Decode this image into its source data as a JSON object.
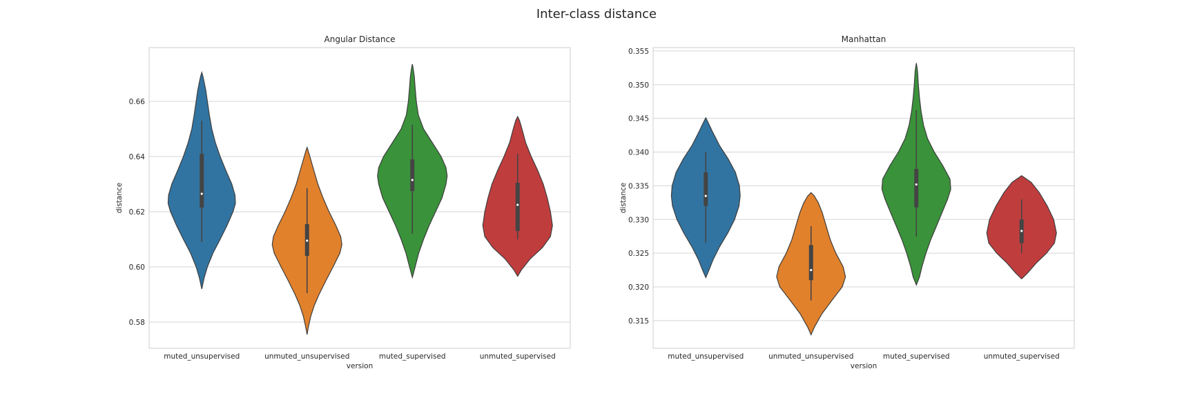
{
  "figure": {
    "title": "Inter-class distance"
  },
  "colors": {
    "palette": [
      "#3274a1",
      "#e1812c",
      "#3a923a",
      "#c03d3e"
    ]
  },
  "chart_data": [
    {
      "type": "violin",
      "title": "Angular Distance",
      "xlabel": "version",
      "ylabel": "distance",
      "categories": [
        "muted_unsupervised",
        "unmuted_unsupervised",
        "muted_supervised",
        "unmuted_supervised"
      ],
      "ylim": [
        0.5705,
        0.6795
      ],
      "yticks": [
        0.58,
        0.6,
        0.62,
        0.64,
        0.66
      ],
      "ytick_labels": [
        "0.58",
        "0.60",
        "0.62",
        "0.64",
        "0.66"
      ],
      "grid": true,
      "violins": [
        {
          "category": "muted_unsupervised",
          "median": 0.6265,
          "q1": 0.6215,
          "q3": 0.641,
          "whisker_low": 0.609,
          "whisker_high": 0.653,
          "profile": [
            [
              0.592,
              0
            ],
            [
              0.596,
              0.06
            ],
            [
              0.6,
              0.14
            ],
            [
              0.605,
              0.28
            ],
            [
              0.61,
              0.46
            ],
            [
              0.615,
              0.63
            ],
            [
              0.62,
              0.78
            ],
            [
              0.623,
              0.84
            ],
            [
              0.626,
              0.83
            ],
            [
              0.63,
              0.75
            ],
            [
              0.635,
              0.6
            ],
            [
              0.64,
              0.46
            ],
            [
              0.645,
              0.34
            ],
            [
              0.65,
              0.25
            ],
            [
              0.655,
              0.19
            ],
            [
              0.66,
              0.14
            ],
            [
              0.664,
              0.1
            ],
            [
              0.667,
              0.06
            ],
            [
              0.669,
              0.03
            ],
            [
              0.6705,
              0
            ]
          ]
        },
        {
          "category": "unmuted_unsupervised",
          "median": 0.6095,
          "q1": 0.604,
          "q3": 0.6155,
          "whisker_low": 0.5905,
          "whisker_high": 0.6285,
          "profile": [
            [
              0.5755,
              0
            ],
            [
              0.578,
              0.03
            ],
            [
              0.582,
              0.09
            ],
            [
              0.586,
              0.18
            ],
            [
              0.59,
              0.3
            ],
            [
              0.595,
              0.47
            ],
            [
              0.6,
              0.65
            ],
            [
              0.605,
              0.82
            ],
            [
              0.608,
              0.87
            ],
            [
              0.611,
              0.84
            ],
            [
              0.615,
              0.72
            ],
            [
              0.62,
              0.55
            ],
            [
              0.625,
              0.4
            ],
            [
              0.63,
              0.27
            ],
            [
              0.635,
              0.17
            ],
            [
              0.639,
              0.09
            ],
            [
              0.642,
              0.03
            ],
            [
              0.6433,
              0
            ]
          ]
        },
        {
          "category": "muted_supervised",
          "median": 0.6315,
          "q1": 0.6275,
          "q3": 0.639,
          "whisker_low": 0.612,
          "whisker_high": 0.6515,
          "profile": [
            [
              0.5962,
              0
            ],
            [
              0.6,
              0.07
            ],
            [
              0.605,
              0.16
            ],
            [
              0.61,
              0.28
            ],
            [
              0.615,
              0.42
            ],
            [
              0.62,
              0.58
            ],
            [
              0.625,
              0.74
            ],
            [
              0.63,
              0.84
            ],
            [
              0.633,
              0.87
            ],
            [
              0.636,
              0.84
            ],
            [
              0.64,
              0.72
            ],
            [
              0.645,
              0.5
            ],
            [
              0.65,
              0.28
            ],
            [
              0.655,
              0.15
            ],
            [
              0.66,
              0.1
            ],
            [
              0.665,
              0.07
            ],
            [
              0.669,
              0.05
            ],
            [
              0.672,
              0.02
            ],
            [
              0.6735,
              0
            ]
          ]
        },
        {
          "category": "unmuted_supervised",
          "median": 0.6225,
          "q1": 0.613,
          "q3": 0.6305,
          "whisker_low": 0.61,
          "whisker_high": 0.641,
          "profile": [
            [
              0.5966,
              0
            ],
            [
              0.599,
              0.1
            ],
            [
              0.603,
              0.32
            ],
            [
              0.607,
              0.62
            ],
            [
              0.611,
              0.82
            ],
            [
              0.615,
              0.87
            ],
            [
              0.62,
              0.82
            ],
            [
              0.625,
              0.74
            ],
            [
              0.63,
              0.64
            ],
            [
              0.635,
              0.5
            ],
            [
              0.64,
              0.34
            ],
            [
              0.645,
              0.2
            ],
            [
              0.65,
              0.11
            ],
            [
              0.653,
              0.05
            ],
            [
              0.6545,
              0
            ]
          ]
        }
      ]
    },
    {
      "type": "violin",
      "title": "Manhattan",
      "xlabel": "version",
      "ylabel": "distance",
      "categories": [
        "muted_unsupervised",
        "unmuted_unsupervised",
        "muted_supervised",
        "unmuted_supervised"
      ],
      "ylim": [
        0.3109,
        0.3555
      ],
      "yticks": [
        0.315,
        0.32,
        0.325,
        0.33,
        0.335,
        0.34,
        0.345,
        0.35,
        0.355
      ],
      "ytick_labels": [
        "0.315",
        "0.320",
        "0.325",
        "0.330",
        "0.335",
        "0.340",
        "0.345",
        "0.350",
        "0.355"
      ],
      "grid": true,
      "violins": [
        {
          "category": "muted_unsupervised",
          "median": 0.3335,
          "q1": 0.332,
          "q3": 0.337,
          "whisker_low": 0.3265,
          "whisker_high": 0.34,
          "profile": [
            [
              0.3214,
              0
            ],
            [
              0.3225,
              0.08
            ],
            [
              0.324,
              0.18
            ],
            [
              0.326,
              0.35
            ],
            [
              0.328,
              0.55
            ],
            [
              0.33,
              0.72
            ],
            [
              0.332,
              0.83
            ],
            [
              0.3335,
              0.86
            ],
            [
              0.335,
              0.84
            ],
            [
              0.337,
              0.74
            ],
            [
              0.339,
              0.56
            ],
            [
              0.341,
              0.34
            ],
            [
              0.343,
              0.17
            ],
            [
              0.344,
              0.09
            ],
            [
              0.3451,
              0
            ]
          ]
        },
        {
          "category": "unmuted_unsupervised",
          "median": 0.3225,
          "q1": 0.321,
          "q3": 0.3262,
          "whisker_low": 0.318,
          "whisker_high": 0.329,
          "profile": [
            [
              0.3129,
              0
            ],
            [
              0.314,
              0.08
            ],
            [
              0.316,
              0.27
            ],
            [
              0.318,
              0.52
            ],
            [
              0.32,
              0.78
            ],
            [
              0.3215,
              0.86
            ],
            [
              0.323,
              0.8
            ],
            [
              0.325,
              0.62
            ],
            [
              0.327,
              0.48
            ],
            [
              0.329,
              0.38
            ],
            [
              0.331,
              0.28
            ],
            [
              0.3325,
              0.18
            ],
            [
              0.3335,
              0.08
            ],
            [
              0.334,
              0
            ]
          ]
        },
        {
          "category": "muted_supervised",
          "median": 0.3352,
          "q1": 0.3318,
          "q3": 0.3375,
          "whisker_low": 0.3275,
          "whisker_high": 0.3462,
          "profile": [
            [
              0.3203,
              0
            ],
            [
              0.3215,
              0.08
            ],
            [
              0.323,
              0.14
            ],
            [
              0.325,
              0.24
            ],
            [
              0.327,
              0.36
            ],
            [
              0.329,
              0.5
            ],
            [
              0.331,
              0.64
            ],
            [
              0.333,
              0.78
            ],
            [
              0.3345,
              0.86
            ],
            [
              0.336,
              0.84
            ],
            [
              0.338,
              0.66
            ],
            [
              0.34,
              0.45
            ],
            [
              0.342,
              0.28
            ],
            [
              0.344,
              0.18
            ],
            [
              0.346,
              0.12
            ],
            [
              0.348,
              0.08
            ],
            [
              0.35,
              0.05
            ],
            [
              0.352,
              0.03
            ],
            [
              0.3532,
              0
            ]
          ]
        },
        {
          "category": "unmuted_supervised",
          "median": 0.3283,
          "q1": 0.3265,
          "q3": 0.33,
          "whisker_low": 0.325,
          "whisker_high": 0.333,
          "profile": [
            [
              0.3212,
              0
            ],
            [
              0.322,
              0.14
            ],
            [
              0.3235,
              0.36
            ],
            [
              0.325,
              0.62
            ],
            [
              0.3265,
              0.82
            ],
            [
              0.328,
              0.87
            ],
            [
              0.33,
              0.8
            ],
            [
              0.332,
              0.64
            ],
            [
              0.334,
              0.44
            ],
            [
              0.3355,
              0.24
            ],
            [
              0.3365,
              0
            ]
          ]
        }
      ]
    }
  ]
}
